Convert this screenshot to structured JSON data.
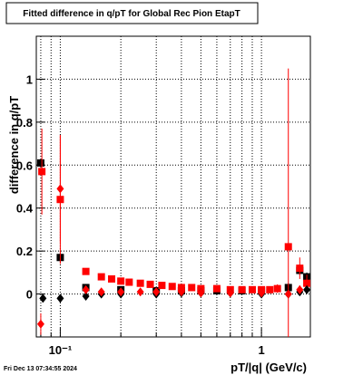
{
  "chart_data": {
    "type": "scatter",
    "title": "Fitted difference in q/pT for Global Rec Pion EtapT",
    "x_label": "pT/|q| (GeV/c)",
    "y_label": "difference in q/pT",
    "timestamp": "Fri Dec 13 07:34:55 2024",
    "xlog": true,
    "grid": true,
    "xlim": [
      0.076,
      1.75
    ],
    "ylim": [
      -0.2,
      1.2
    ],
    "xticks": [
      {
        "value": 0.1,
        "label": "10⁻¹"
      },
      1
    ],
    "xminor": [
      0.08,
      0.09,
      0.2,
      0.3,
      0.4,
      0.5,
      0.6,
      0.7,
      0.8,
      0.9
    ],
    "yticks": [
      0,
      0.2,
      0.4,
      0.6,
      0.8,
      1
    ],
    "series": [
      {
        "color": "#000000",
        "marker": "square",
        "x": [
          0.08,
          0.1,
          0.134,
          0.2,
          0.3,
          0.4,
          0.5,
          0.6,
          0.8,
          1.0,
          1.36,
          1.55,
          1.68
        ],
        "values": [
          0.61,
          0.17,
          0.03,
          0.02,
          0.015,
          0.015,
          0.015,
          0.015,
          0.015,
          0.015,
          0.03,
          0.11,
          0.08
        ],
        "errors": [
          0.02,
          0.02,
          0.01,
          0.01,
          0.01,
          0.01,
          0.01,
          0.01,
          0.01,
          0.01,
          0.02,
          0.02,
          0.02
        ]
      },
      {
        "color": "#ff0000",
        "marker": "square",
        "x": [
          0.081,
          0.1,
          0.134,
          0.16,
          0.18,
          0.2,
          0.22,
          0.25,
          0.28,
          0.32,
          0.36,
          0.4,
          0.45,
          0.5,
          0.6,
          0.7,
          0.8,
          0.9,
          1.0,
          1.1,
          1.2,
          1.36,
          1.55,
          1.68
        ],
        "values": [
          0.57,
          0.44,
          0.105,
          0.08,
          0.07,
          0.06,
          0.055,
          0.05,
          0.045,
          0.04,
          0.035,
          0.03,
          0.03,
          0.025,
          0.025,
          0.02,
          0.02,
          0.02,
          0.02,
          0.02,
          0.025,
          0.22,
          0.12,
          0.05
        ],
        "errors": [
          0.2,
          0.3,
          0.015,
          0.01,
          0.01,
          0.01,
          0.01,
          0.01,
          0.01,
          0.01,
          0.01,
          0.01,
          0.01,
          0.01,
          0.01,
          0.01,
          0.01,
          0.01,
          0.01,
          0.01,
          0.02,
          0.83,
          0.05,
          0.04
        ]
      },
      {
        "color": "#000000",
        "marker": "diamond",
        "x": [
          0.082,
          0.1,
          0.134,
          0.16,
          0.2,
          0.3,
          0.4,
          0.5,
          0.7,
          1.0,
          1.36,
          1.55,
          1.68
        ],
        "values": [
          -0.02,
          -0.02,
          -0.01,
          0.0,
          0.0,
          0.0,
          0.005,
          0.005,
          0.005,
          0.0,
          0.0,
          0.01,
          0.02
        ],
        "errors": [
          0.01,
          0.01,
          0.01,
          0.01,
          0.01,
          0.01,
          0.01,
          0.01,
          0.01,
          0.01,
          0.01,
          0.01,
          0.01
        ]
      },
      {
        "color": "#ff0000",
        "marker": "diamond",
        "x": [
          0.08,
          0.1,
          0.134,
          0.16,
          0.2,
          0.25,
          0.3,
          0.4,
          0.5,
          0.7,
          1.0,
          1.36,
          1.55
        ],
        "values": [
          -0.14,
          0.49,
          0.02,
          0.01,
          0.01,
          0.01,
          0.01,
          0.01,
          0.005,
          0.005,
          0.005,
          0.0,
          0.02
        ],
        "errors": [
          0.05,
          0.25,
          0.01,
          0.01,
          0.01,
          0.01,
          0.01,
          0.01,
          0.01,
          0.01,
          0.01,
          0.01,
          0.02
        ]
      }
    ]
  }
}
